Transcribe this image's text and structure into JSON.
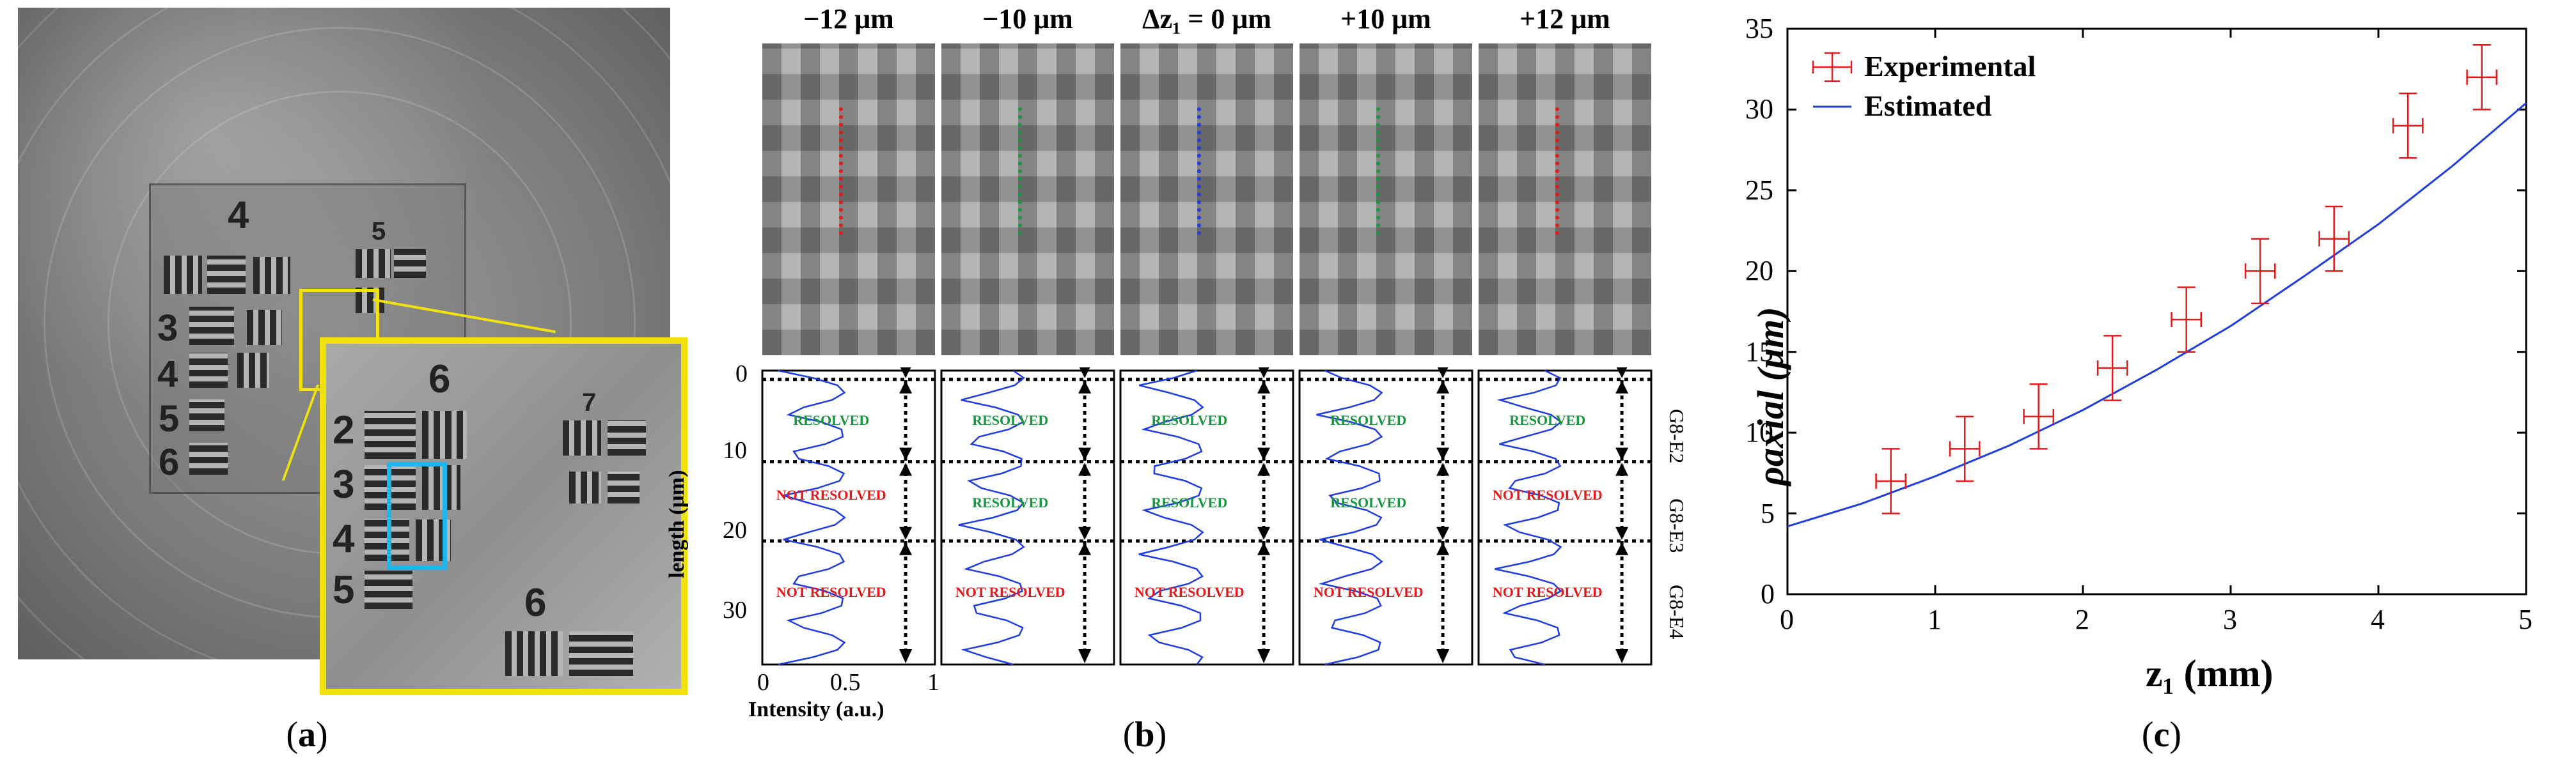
{
  "panels": {
    "a": {
      "label": "a"
    },
    "b": {
      "label": "b"
    },
    "c": {
      "label": "c"
    }
  },
  "panel_a": {
    "target_digits": [
      "4",
      "5",
      "3",
      "4",
      "5",
      "6"
    ],
    "inset_digits": [
      "6",
      "7",
      "2",
      "3",
      "4",
      "5",
      "6"
    ]
  },
  "panel_b": {
    "columns": [
      {
        "header": "−12 μm",
        "line_color": "#e31a1c",
        "states": [
          "RESOLVED",
          "NOT RESOLVED",
          "NOT RESOLVED"
        ]
      },
      {
        "header": "−10 μm",
        "line_color": "#1a9641",
        "states": [
          "RESOLVED",
          "RESOLVED",
          "NOT RESOLVED"
        ]
      },
      {
        "header": "Δz₁ = 0 μm",
        "line_color": "#1f3de0",
        "states": [
          "RESOLVED",
          "RESOLVED",
          "NOT RESOLVED"
        ]
      },
      {
        "header": "+10 μm",
        "line_color": "#1a9641",
        "states": [
          "RESOLVED",
          "RESOLVED",
          "NOT RESOLVED"
        ]
      },
      {
        "header": "+12 μm",
        "line_color": "#e31a1c",
        "states": [
          "RESOLVED",
          "NOT RESOLVED",
          "NOT RESOLVED"
        ]
      }
    ],
    "y_ticks": [
      "0",
      "10",
      "20",
      "30"
    ],
    "x_ticks": [
      "0",
      "0.5",
      "1"
    ],
    "ylabel": "length (μm)",
    "xlabel": "Intensity (a.u.)",
    "groups": [
      "G8-E2",
      "G8-E3",
      "G8-E4"
    ]
  },
  "chart_data": {
    "type": "scatter",
    "title": "",
    "xlabel": "z₁ (mm)",
    "ylabel": "ρaxial (μm)",
    "xlim": [
      0,
      5
    ],
    "ylim": [
      0,
      35
    ],
    "x_ticks": [
      0,
      1,
      2,
      3,
      4,
      5
    ],
    "y_ticks": [
      0,
      5,
      10,
      15,
      20,
      25,
      30,
      35
    ],
    "legend_position": "top-left",
    "series": [
      {
        "name": "Experimental",
        "color": "#e31a1c",
        "marker": "errorbar",
        "x": [
          0.7,
          1.2,
          1.7,
          2.2,
          2.7,
          3.2,
          3.7,
          4.2,
          4.7
        ],
        "y": [
          7,
          9,
          11,
          14,
          17,
          20,
          22,
          29,
          32
        ],
        "y_err": [
          2,
          2,
          2,
          2,
          2,
          2,
          2,
          2,
          2
        ],
        "x_err": [
          0.1,
          0.1,
          0.1,
          0.1,
          0.1,
          0.1,
          0.1,
          0.1,
          0.1
        ]
      },
      {
        "name": "Estimated",
        "color": "#1f3de0",
        "marker": "line",
        "x": [
          0,
          0.5,
          1,
          1.5,
          2,
          2.5,
          3,
          3.5,
          4,
          4.5,
          5
        ],
        "y": [
          4.2,
          5.6,
          7.3,
          9.2,
          11.4,
          13.9,
          16.6,
          19.7,
          22.9,
          26.5,
          30.4
        ]
      }
    ]
  }
}
